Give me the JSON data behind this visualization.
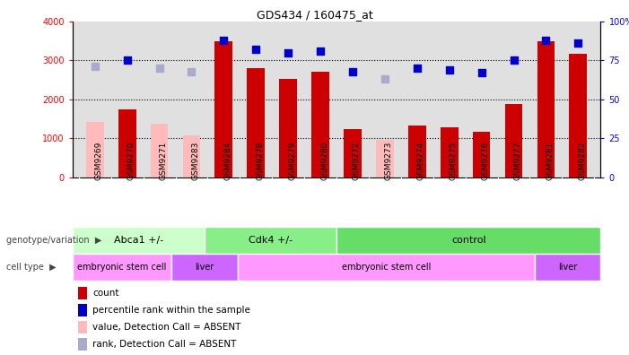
{
  "title": "GDS434 / 160475_at",
  "samples": [
    "GSM9269",
    "GSM9270",
    "GSM9271",
    "GSM9283",
    "GSM9284",
    "GSM9278",
    "GSM9279",
    "GSM9280",
    "GSM9272",
    "GSM9273",
    "GSM9274",
    "GSM9275",
    "GSM9276",
    "GSM9277",
    "GSM9281",
    "GSM9282"
  ],
  "counts": [
    null,
    1750,
    null,
    null,
    3480,
    2800,
    2520,
    2720,
    1230,
    null,
    1340,
    1295,
    1160,
    1880,
    3490,
    3160
  ],
  "counts_absent": [
    1430,
    null,
    1380,
    1080,
    null,
    null,
    null,
    null,
    null,
    960,
    null,
    null,
    null,
    null,
    null,
    null
  ],
  "percentile_ranks": [
    null,
    75,
    null,
    null,
    88,
    82,
    80,
    81,
    68,
    null,
    70,
    69,
    67,
    75,
    88,
    86
  ],
  "percentile_ranks_absent": [
    71,
    null,
    70,
    68,
    null,
    null,
    null,
    null,
    null,
    63,
    null,
    null,
    null,
    null,
    null,
    null
  ],
  "bar_color_present": "#cc0000",
  "bar_color_absent": "#ffbbbb",
  "dot_color_present": "#0000cc",
  "dot_color_absent": "#aaaacc",
  "ylim_left": [
    0,
    4000
  ],
  "ylim_right": [
    0,
    100
  ],
  "yticks_left": [
    0,
    1000,
    2000,
    3000,
    4000
  ],
  "ytick_labels_left": [
    "0",
    "1000",
    "2000",
    "3000",
    "4000"
  ],
  "yticks_right": [
    0,
    25,
    50,
    75,
    100
  ],
  "ytick_labels_right": [
    "0",
    "25",
    "50",
    "75",
    "100%"
  ],
  "genotype_groups": [
    {
      "label": "Abca1 +/-",
      "start": 0,
      "end": 4,
      "color": "#ccffcc"
    },
    {
      "label": "Cdk4 +/-",
      "start": 4,
      "end": 8,
      "color": "#88ee88"
    },
    {
      "label": "control",
      "start": 8,
      "end": 16,
      "color": "#66dd66"
    }
  ],
  "celltype_groups": [
    {
      "label": "embryonic stem cell",
      "start": 0,
      "end": 3,
      "color": "#ff99ff"
    },
    {
      "label": "liver",
      "start": 3,
      "end": 5,
      "color": "#cc66ff"
    },
    {
      "label": "embryonic stem cell",
      "start": 5,
      "end": 14,
      "color": "#ff99ff"
    },
    {
      "label": "liver",
      "start": 14,
      "end": 16,
      "color": "#cc66ff"
    }
  ],
  "legend_items": [
    {
      "label": "count",
      "color": "#cc0000"
    },
    {
      "label": "percentile rank within the sample",
      "color": "#0000cc"
    },
    {
      "label": "value, Detection Call = ABSENT",
      "color": "#ffbbbb"
    },
    {
      "label": "rank, Detection Call = ABSENT",
      "color": "#aaaacc"
    }
  ],
  "bar_width": 0.55,
  "dot_size": 28,
  "background_color": "#ffffff",
  "plot_bg_color": "#e0e0e0"
}
